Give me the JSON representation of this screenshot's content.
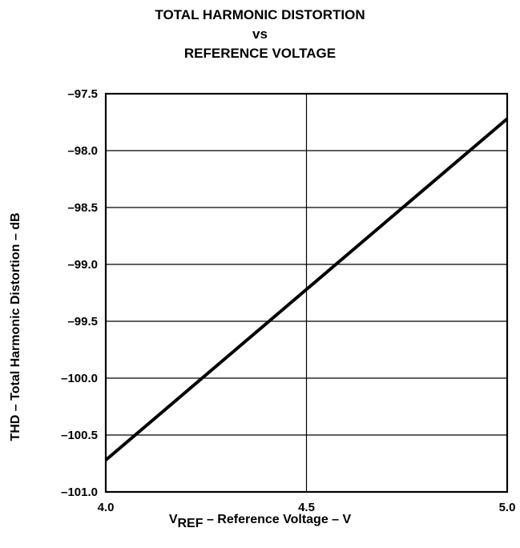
{
  "chart_data": {
    "type": "line",
    "title_lines": [
      "TOTAL HARMONIC DISTORTION",
      "vs",
      "REFERENCE VOLTAGE"
    ],
    "xlabel": {
      "symbol": "V",
      "subscript": "REF",
      "rest": " – Reference Voltage – V"
    },
    "ylabel": "THD – Total Harmonic Distortion – dB",
    "xlim": [
      4.0,
      5.0
    ],
    "ylim": [
      -101.0,
      -97.5
    ],
    "x_ticks": [
      "4.0",
      "4.5",
      "5.0"
    ],
    "y_ticks": [
      "–97.5",
      "–98.0",
      "–98.5",
      "–99.0",
      "–99.5",
      "–100.0",
      "–100.5",
      "–101.0"
    ],
    "grid": true,
    "series": [
      {
        "x": [
          4.0,
          5.0
        ],
        "y": [
          -100.72,
          -97.72
        ]
      }
    ]
  }
}
